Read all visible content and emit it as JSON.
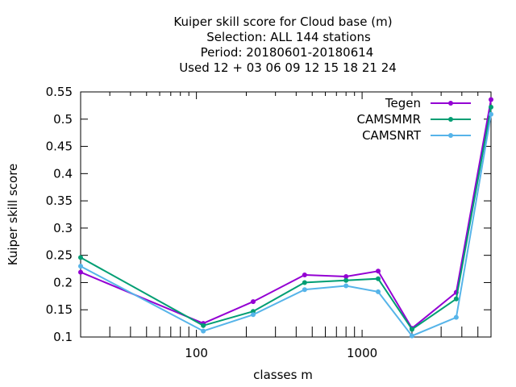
{
  "chart_data": {
    "type": "line",
    "title_lines": [
      "Kuiper skill score  for Cloud base (m)",
      "Selection: ALL    144 stations",
      "Period: 20180601-20180614",
      "Used  12 + 03 06 09 12 15 18 21 24"
    ],
    "xlabel": "classes m",
    "ylabel": "Kuiper skill score",
    "xscale": "log",
    "xlim": [
      20,
      6000
    ],
    "ylim": [
      0.1,
      0.55
    ],
    "xticks": [
      100,
      1000
    ],
    "xtick_labels": [
      "100",
      "1000"
    ],
    "yticks": [
      0.1,
      0.15,
      0.2,
      0.25,
      0.3,
      0.35,
      0.4,
      0.45,
      0.5,
      0.55
    ],
    "ytick_labels": [
      "0.1",
      "0.15",
      "0.2",
      "0.25",
      "0.3",
      "0.35",
      "0.4",
      "0.45",
      "0.5",
      "0.55"
    ],
    "grid": false,
    "legend_position": "top-right",
    "x": [
      20,
      110,
      220,
      450,
      800,
      1250,
      2000,
      3700,
      6000
    ],
    "series": [
      {
        "name": "Tegen",
        "color": "#9400d3",
        "values": [
          0.219,
          0.125,
          0.165,
          0.214,
          0.211,
          0.221,
          0.116,
          0.182,
          0.536
        ]
      },
      {
        "name": "CAMSMMR",
        "color": "#009e73",
        "values": [
          0.246,
          0.121,
          0.147,
          0.2,
          0.204,
          0.207,
          0.114,
          0.17,
          0.522
        ]
      },
      {
        "name": "CAMSNRT",
        "color": "#56b4e9",
        "values": [
          0.23,
          0.111,
          0.141,
          0.187,
          0.194,
          0.183,
          0.102,
          0.136,
          0.509
        ]
      }
    ]
  }
}
